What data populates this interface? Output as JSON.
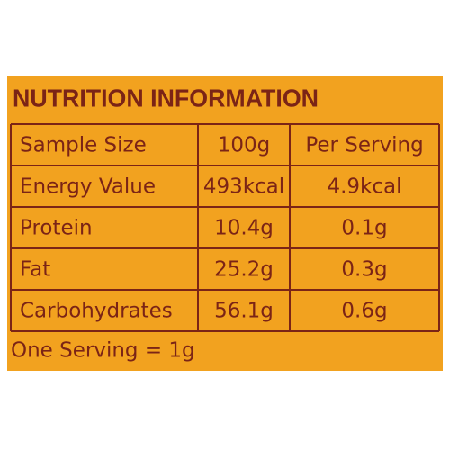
{
  "title": "NUTRITION INFORMATION",
  "table": {
    "rows": [
      [
        "Sample Size",
        "100g",
        "Per Serving"
      ],
      [
        "Energy Value",
        "493kcal",
        "4.9kcal"
      ],
      [
        "Protein",
        "10.4g",
        "0.1g"
      ],
      [
        "Fat",
        "25.2g",
        "0.3g"
      ],
      [
        "Carbohydrates",
        "56.1g",
        "0.6g"
      ]
    ]
  },
  "footer": "One Serving = 1g"
}
